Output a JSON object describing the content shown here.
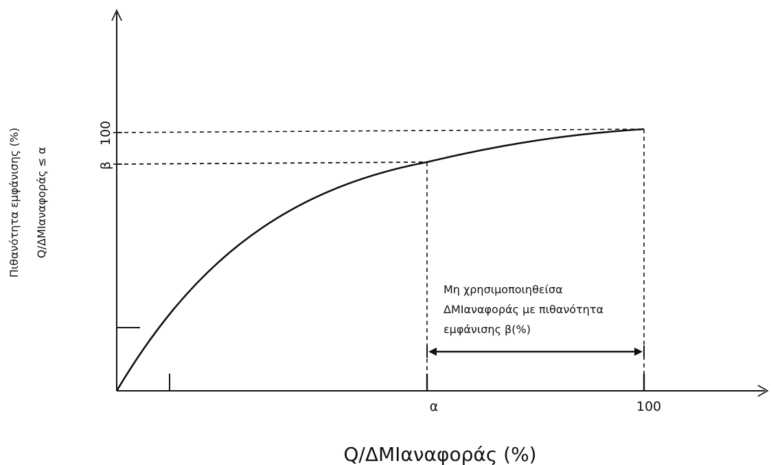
{
  "diagram": {
    "x_axis_label": "Q/ΔMIαναφοράς (%)",
    "y_axis_label_line1": "Πιθανότητα εμφάνισης (%)",
    "y_axis_label_line2": "Q/ΔMIαναφοράς ≤ α",
    "x_ticks": [
      "α",
      "100"
    ],
    "y_ticks": [
      "β",
      "100"
    ],
    "annotation_lines": [
      "Μη χρησιμοποιηθείσα",
      "ΔMIαναφοράς με πιθανότητα",
      "εμφάνισης β(%)"
    ]
  },
  "colors": {
    "ink": "#111111",
    "background": "#ffffff"
  }
}
